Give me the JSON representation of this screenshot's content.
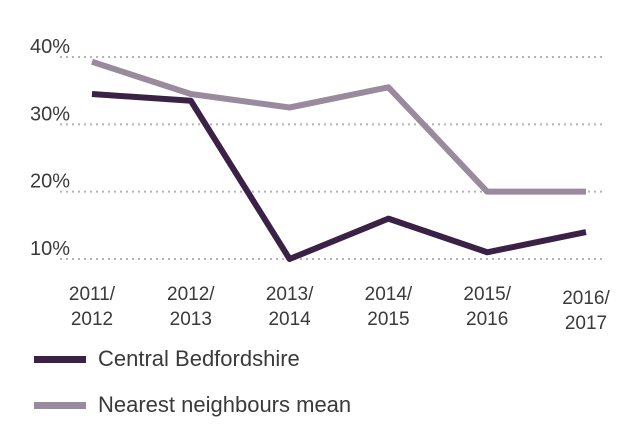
{
  "chart_data": {
    "type": "line",
    "categories": [
      [
        "2011/",
        "2012"
      ],
      [
        "2012/",
        "2013"
      ],
      [
        "2013/",
        "2014"
      ],
      [
        "2014/",
        "2015"
      ],
      [
        "2015/",
        "2016"
      ],
      [
        "2016/",
        "2017"
      ]
    ],
    "yticks": [
      "40%",
      "30%",
      "20%",
      "10%"
    ],
    "ytick_values": [
      40,
      30,
      20,
      10
    ],
    "ylim": [
      10,
      40
    ],
    "grid": true,
    "legend_position": "bottom",
    "series": [
      {
        "name": "Central Bedfordshire",
        "color": "#3a2145",
        "values": [
          34.5,
          33.5,
          10,
          16,
          11,
          14
        ]
      },
      {
        "name": "Nearest neighbours mean",
        "color": "#9a8a9e",
        "values": [
          39.3,
          34.5,
          32.5,
          35.5,
          20,
          20
        ]
      }
    ]
  }
}
